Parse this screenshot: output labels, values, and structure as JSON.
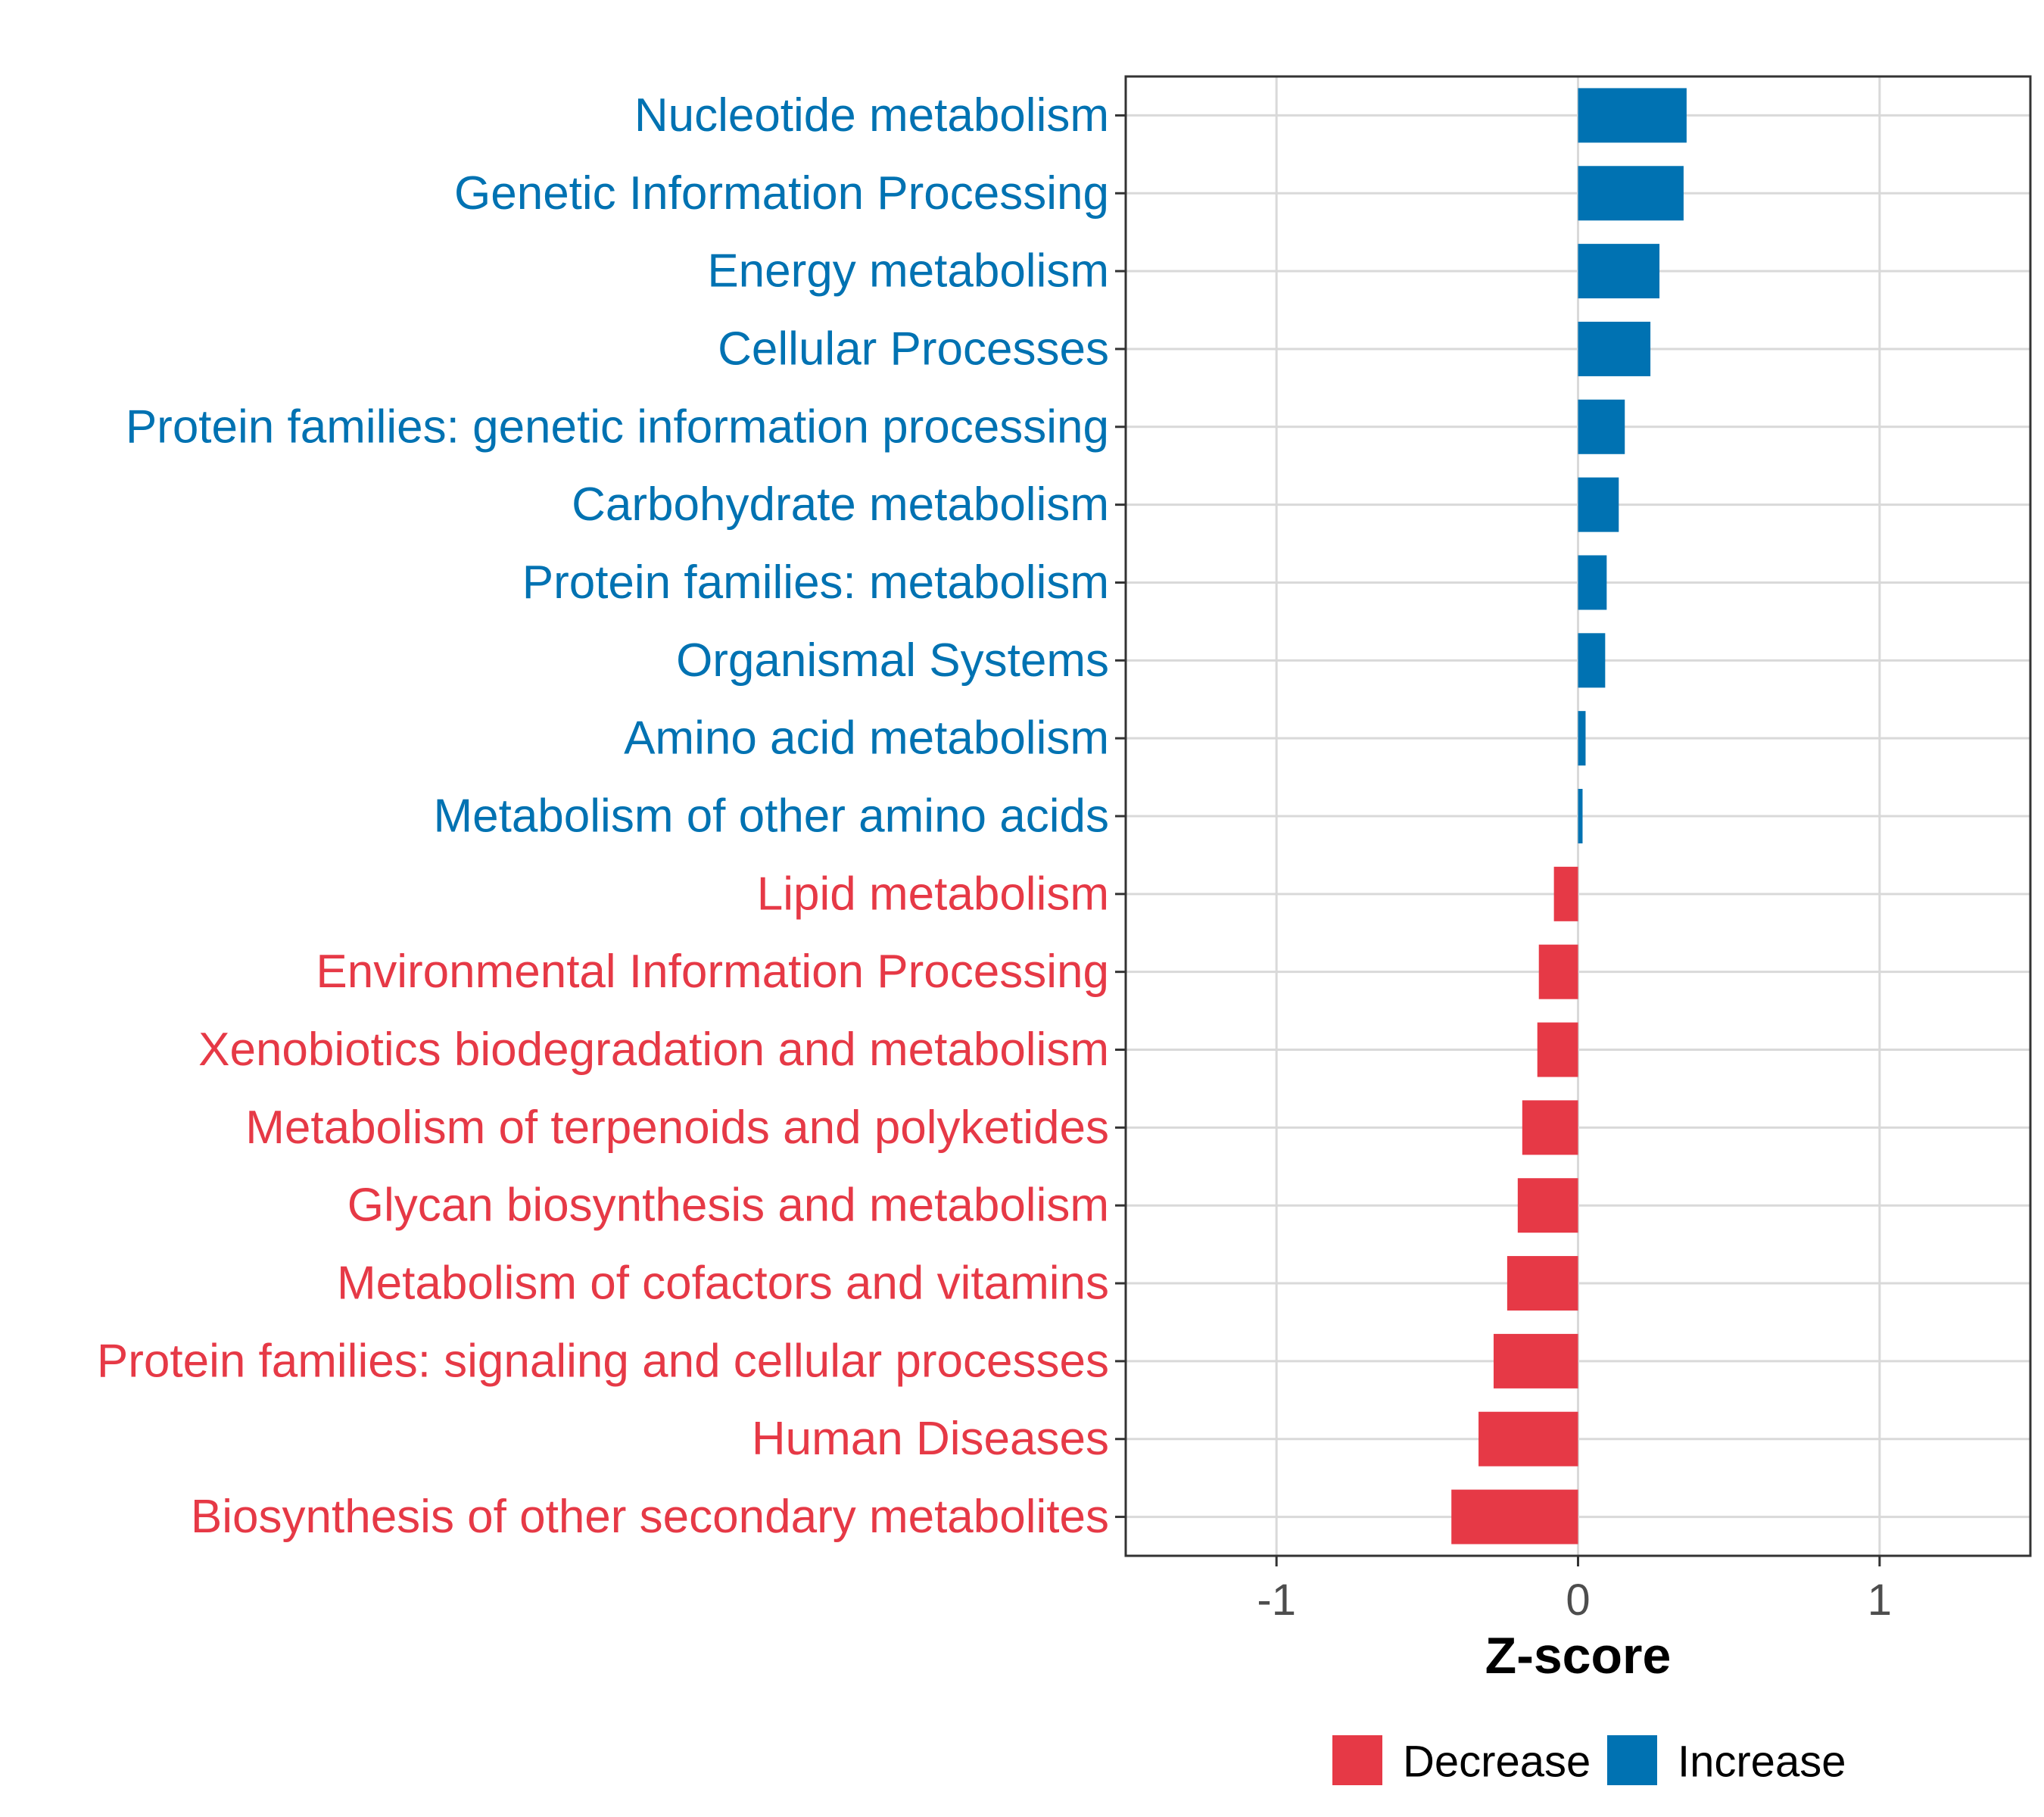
{
  "chart_data": {
    "type": "bar",
    "orientation": "horizontal",
    "title": "",
    "xlabel": "Z-score",
    "ylabel": "",
    "xlim": [
      -1.5,
      1.5
    ],
    "xticks": [
      -1,
      0,
      1
    ],
    "xtick_labels": [
      "-1",
      "0",
      "1"
    ],
    "grid": true,
    "legend_position": "bottom",
    "colors": {
      "Decrease": "#e63946",
      "Increase": "#0072b2"
    },
    "legend": [
      {
        "name": "Decrease",
        "color": "#e63946"
      },
      {
        "name": "Increase",
        "color": "#0072b2"
      }
    ],
    "bars": [
      {
        "category": "Nucleotide metabolism",
        "value": 0.36,
        "group": "Increase"
      },
      {
        "category": "Genetic Information Processing",
        "value": 0.35,
        "group": "Increase"
      },
      {
        "category": "Energy metabolism",
        "value": 0.27,
        "group": "Increase"
      },
      {
        "category": "Cellular Processes",
        "value": 0.24,
        "group": "Increase"
      },
      {
        "category": "Protein families: genetic information processing",
        "value": 0.155,
        "group": "Increase"
      },
      {
        "category": "Carbohydrate metabolism",
        "value": 0.135,
        "group": "Increase"
      },
      {
        "category": "Protein families: metabolism",
        "value": 0.095,
        "group": "Increase"
      },
      {
        "category": "Organismal Systems",
        "value": 0.09,
        "group": "Increase"
      },
      {
        "category": "Amino acid metabolism",
        "value": 0.025,
        "group": "Increase"
      },
      {
        "category": "Metabolism of other amino acids",
        "value": 0.015,
        "group": "Increase"
      },
      {
        "category": "Lipid metabolism",
        "value": -0.08,
        "group": "Decrease"
      },
      {
        "category": "Environmental Information Processing",
        "value": -0.13,
        "group": "Decrease"
      },
      {
        "category": "Xenobiotics biodegradation and metabolism",
        "value": -0.135,
        "group": "Decrease"
      },
      {
        "category": "Metabolism of terpenoids and polyketides",
        "value": -0.185,
        "group": "Decrease"
      },
      {
        "category": "Glycan biosynthesis and metabolism",
        "value": -0.2,
        "group": "Decrease"
      },
      {
        "category": "Metabolism of cofactors and vitamins",
        "value": -0.235,
        "group": "Decrease"
      },
      {
        "category": "Protein families: signaling and cellular processes",
        "value": -0.28,
        "group": "Decrease"
      },
      {
        "category": "Human Diseases",
        "value": -0.33,
        "group": "Decrease"
      },
      {
        "category": "Biosynthesis of other secondary metabolites",
        "value": -0.42,
        "group": "Decrease"
      }
    ]
  }
}
